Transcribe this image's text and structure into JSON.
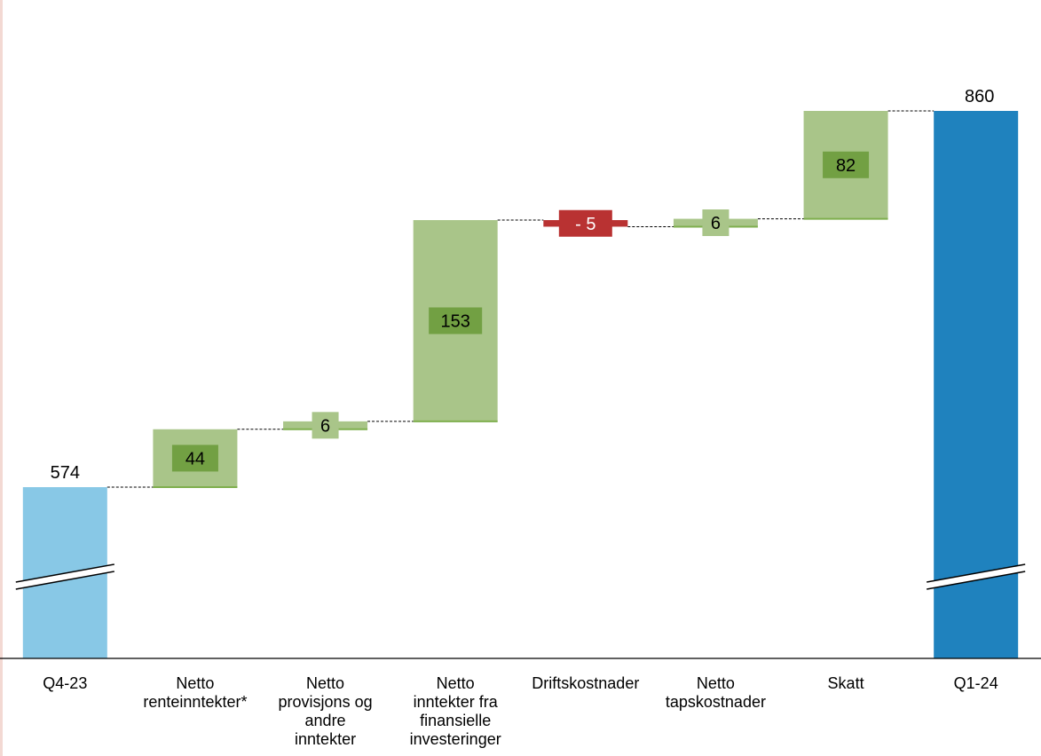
{
  "colors": {
    "start_bar": "#88C8E6",
    "end_bar": "#1F82BE",
    "increase": "#A9C589",
    "increase_edge": "#7FAF4E",
    "label_box_increase": "#72A043",
    "decrease": "#B93232",
    "connector": "#000000",
    "axis": "#000000",
    "text": "#000000",
    "left_edge": "#F3D9D3"
  },
  "chart_data": {
    "type": "waterfall",
    "title": "",
    "xlabel": "",
    "ylabel": "",
    "axis_break": true,
    "grid": false,
    "legend": "none",
    "categories": [
      "Q4-23",
      "Netto renteinntekter*",
      "Netto provisjons og andre inntekter",
      "Netto inntekter fra finansielle investeringer",
      "Driftskostnader",
      "Netto tapskostnader",
      "Skatt",
      "Q1-24"
    ],
    "category_lines": [
      [
        "Q4-23"
      ],
      [
        "Netto",
        "renteinntekter*"
      ],
      [
        "Netto",
        "provisjons og",
        "andre",
        "inntekter"
      ],
      [
        "Netto",
        "inntekter fra",
        "finansielle",
        "investeringer"
      ],
      [
        "Driftskostnader"
      ],
      [
        "Netto",
        "tapskostnader"
      ],
      [
        "Skatt"
      ],
      [
        "Q1-24"
      ]
    ],
    "bars": [
      {
        "kind": "total",
        "value": 574,
        "label": "574"
      },
      {
        "kind": "delta",
        "value": 44,
        "label": "44"
      },
      {
        "kind": "delta",
        "value": 6,
        "label": "6"
      },
      {
        "kind": "delta",
        "value": 153,
        "label": "153"
      },
      {
        "kind": "delta",
        "value": -5,
        "label": "- 5"
      },
      {
        "kind": "delta",
        "value": 6,
        "label": "6"
      },
      {
        "kind": "delta",
        "value": 82,
        "label": "82"
      },
      {
        "kind": "total",
        "value": 860,
        "label": "860"
      }
    ]
  }
}
